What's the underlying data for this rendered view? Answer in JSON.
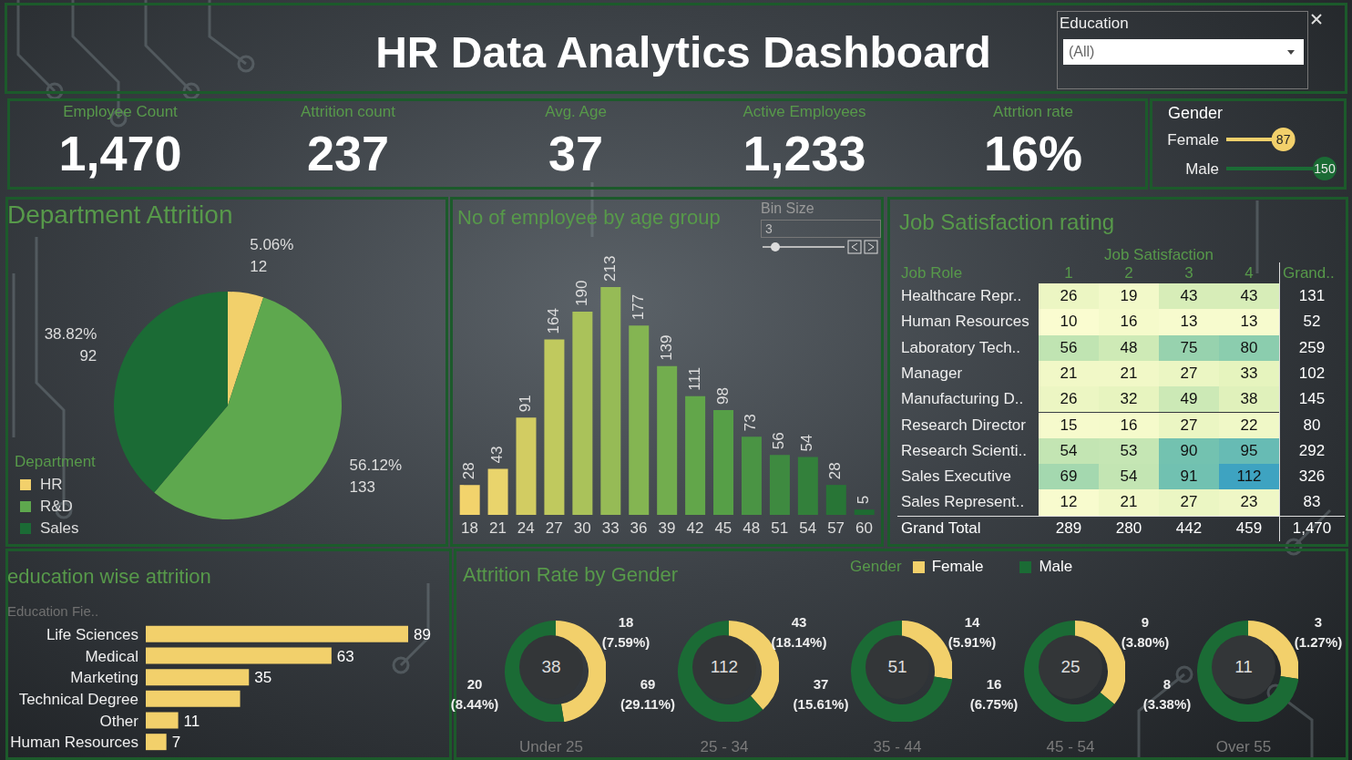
{
  "header": {
    "title": "HR Data Analytics Dashboard",
    "filter": {
      "label": "Education",
      "value": "(All)"
    }
  },
  "kpis": [
    {
      "label": "Employee Count",
      "value": 1470,
      "value_label": "1,470"
    },
    {
      "label": "Attrition count",
      "value": 237
    },
    {
      "label": "Avg. Age",
      "value": 37
    },
    {
      "label": "Active Employees",
      "value": 1233,
      "value_label": "1,233"
    },
    {
      "label": "Attrtion rate",
      "value": 16,
      "value_label": "16%"
    }
  ],
  "chart_data": [
    {
      "type": "pie",
      "title": "Department Attrition",
      "legend_title": "Department",
      "legend": "lower left",
      "categories": [
        "HR",
        "R&D",
        "Sales"
      ],
      "values": [
        12,
        133,
        92
      ],
      "percent_labels": [
        "5.06%",
        "56.12%",
        "38.82%"
      ],
      "colors": [
        "#f2d06b",
        "#5ea84e",
        "#1b6b35"
      ],
      "data_labels": true
    },
    {
      "type": "bar",
      "title": "No of employee by age group",
      "bin_size_label": "Bin Size",
      "bin_size": 3,
      "categories": [
        18,
        21,
        24,
        27,
        30,
        33,
        36,
        39,
        42,
        45,
        48,
        51,
        54,
        57,
        60
      ],
      "values": [
        28,
        43,
        91,
        164,
        190,
        213,
        177,
        139,
        111,
        98,
        73,
        56,
        54,
        28,
        5
      ],
      "colors": [
        "#f2d36c",
        "#e9d46c",
        "#d2cc62",
        "#c0c95e",
        "#aac25a",
        "#96bb56",
        "#84b552",
        "#72ad4e",
        "#62a64a",
        "#569f47",
        "#4a9444",
        "#3e8a40",
        "#33803b",
        "#287536",
        "#1e6b32"
      ],
      "data_labels": true,
      "tick_labels": "x"
    },
    {
      "type": "bar",
      "orientation": "horizontal",
      "title": "education wise attrition",
      "y_label": "Education Fie..",
      "categories": [
        "Life Sciences",
        "Medical",
        "Marketing",
        "Technical Degree",
        "Other",
        "Human Resources"
      ],
      "values": [
        89,
        63,
        35,
        32,
        11,
        7
      ],
      "value_labels": [
        "89",
        "63",
        "35",
        null,
        "11",
        "7"
      ],
      "color": "#f2d06b",
      "data_labels": true,
      "tick_labels": "y"
    },
    {
      "type": "donut",
      "title": "Attrition Rate by Gender",
      "legend_title": "Gender",
      "legend": "upper right",
      "categories": [
        "Under 25",
        "25 - 34",
        "35 - 44",
        "45 - 54",
        "Over 55"
      ],
      "totals": [
        38,
        112,
        51,
        25,
        11
      ],
      "series": [
        {
          "name": "Female",
          "color": "#f2d06b",
          "values": [
            18,
            43,
            14,
            9,
            3
          ],
          "rate_labels": [
            "(7.59%)",
            "(18.14%)",
            "(5.91%)",
            "(3.80%)",
            "(1.27%)"
          ]
        },
        {
          "name": "Male",
          "color": "#1b6b35",
          "values": [
            20,
            69,
            37,
            16,
            8
          ],
          "rate_labels": [
            "(8.44%)",
            "(29.11%)",
            "(15.61%)",
            "(6.75%)",
            "(3.38%)"
          ]
        }
      ],
      "data_labels": true
    },
    {
      "type": "bar",
      "orientation": "horizontal",
      "marker": "circle",
      "title": "Gender",
      "categories": [
        "Female",
        "Male"
      ],
      "values": [
        87,
        150
      ],
      "colors": [
        "#f2d06b",
        "#1b6b35"
      ],
      "data_labels": true,
      "tick_labels": "y"
    }
  ],
  "table": {
    "title": "Job Satisfaction rating",
    "column_header": "Job Satisfaction",
    "row_header": "Job Role",
    "columns": [
      1,
      2,
      3,
      4
    ],
    "total_column": "Grand..",
    "rows": [
      {
        "label": "Healthcare Repr..",
        "values": [
          26,
          19,
          43,
          43
        ],
        "total": 131
      },
      {
        "label": "Human Resources",
        "values": [
          10,
          16,
          13,
          13
        ],
        "total": 52
      },
      {
        "label": "Laboratory Tech..",
        "values": [
          56,
          48,
          75,
          80
        ],
        "total": 259
      },
      {
        "label": "Manager",
        "values": [
          21,
          21,
          27,
          33
        ],
        "total": 102
      },
      {
        "label": "Manufacturing D..",
        "values": [
          26,
          32,
          49,
          38
        ],
        "total": 145
      },
      {
        "label": "Research Director",
        "values": [
          15,
          16,
          27,
          22
        ],
        "total": 80
      },
      {
        "label": "Research Scienti..",
        "values": [
          54,
          53,
          90,
          95
        ],
        "total": 292
      },
      {
        "label": "Sales Executive",
        "values": [
          69,
          54,
          91,
          112
        ],
        "total": 326
      },
      {
        "label": "Sales Represent..",
        "values": [
          12,
          21,
          27,
          23
        ],
        "total": 83
      }
    ],
    "total_row": {
      "label": "Grand Total",
      "values": [
        289,
        280,
        442,
        459
      ],
      "total": 1470,
      "total_label": "1,470"
    }
  }
}
